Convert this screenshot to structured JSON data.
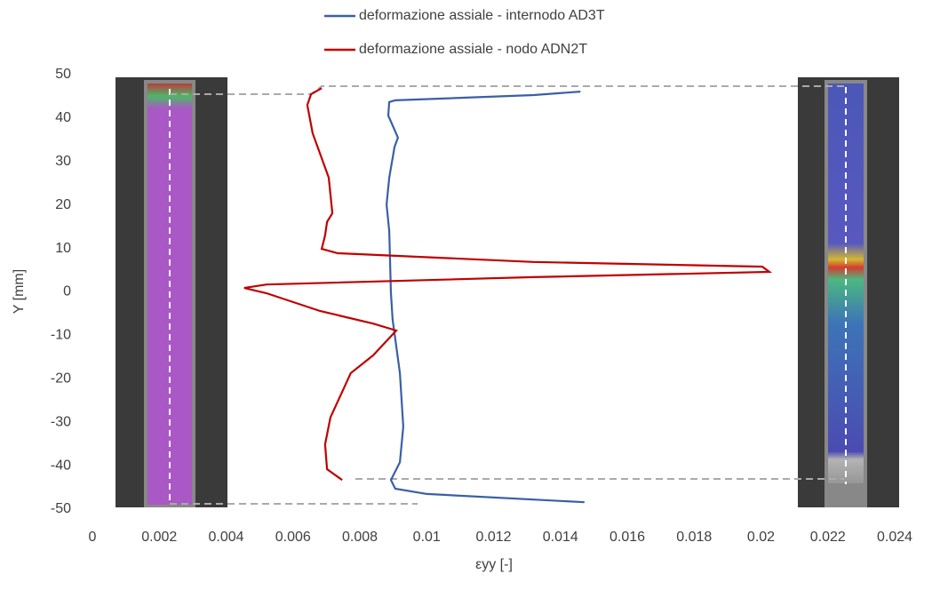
{
  "chart_data": {
    "type": "line",
    "x_label": "εyy [-]",
    "y_label": "Y [mm]",
    "xlim": [
      0,
      0.024
    ],
    "xticks": [
      0,
      0.002,
      0.004,
      0.006,
      0.008,
      0.01,
      0.012,
      0.014,
      0.016,
      0.018,
      0.02,
      0.022,
      0.024
    ],
    "ylim": [
      -50,
      50
    ],
    "yticks": [
      -50,
      -40,
      -30,
      -20,
      -10,
      0,
      10,
      20,
      30,
      40,
      50
    ],
    "series": [
      {
        "name": "deformazione assiale - internodo AD3T",
        "color": "#3a5fa8",
        "x": [
          0.0146,
          0.0132,
          0.00906,
          0.00888,
          0.00885,
          0.00906,
          0.00914,
          0.00904,
          0.00888,
          0.0088,
          0.00888,
          0.00893,
          0.00898,
          0.00909,
          0.0092,
          0.0093,
          0.0092,
          0.00893,
          0.00906,
          0.01,
          0.01472
        ],
        "y": [
          46.1,
          45.3,
          44.1,
          43.7,
          40.6,
          36.9,
          35.5,
          33.4,
          26.3,
          20.1,
          14,
          -0.3,
          -6.4,
          -12.5,
          -18.7,
          -31,
          -39.2,
          -43.3,
          -45.3,
          -46.5,
          -48.4
        ]
      },
      {
        "name": "deformazione assiale - nodo ADN2T",
        "color": "#c00000",
        "x": [
          0.00686,
          0.00654,
          0.00643,
          0.00659,
          0.00707,
          0.00718,
          0.00702,
          0.00696,
          0.00686,
          0.00734,
          0.01318,
          0.02004,
          0.02025,
          0.01318,
          0.00521,
          0.00454,
          0.00521,
          0.00681,
          0.0084,
          0.00909,
          0.0084,
          0.00773,
          0.00712,
          0.00696,
          0.00702,
          0.00747
        ],
        "y": [
          46.9,
          45.5,
          43,
          36.5,
          26.3,
          18.1,
          16.1,
          13,
          9.9,
          8.9,
          6.9,
          5.8,
          4.6,
          3.4,
          1.7,
          0.9,
          -0.3,
          -4.4,
          -7.3,
          -8.9,
          -14.6,
          -18.7,
          -28.9,
          -35.1,
          -40.8,
          -43.3
        ]
      }
    ]
  }
}
